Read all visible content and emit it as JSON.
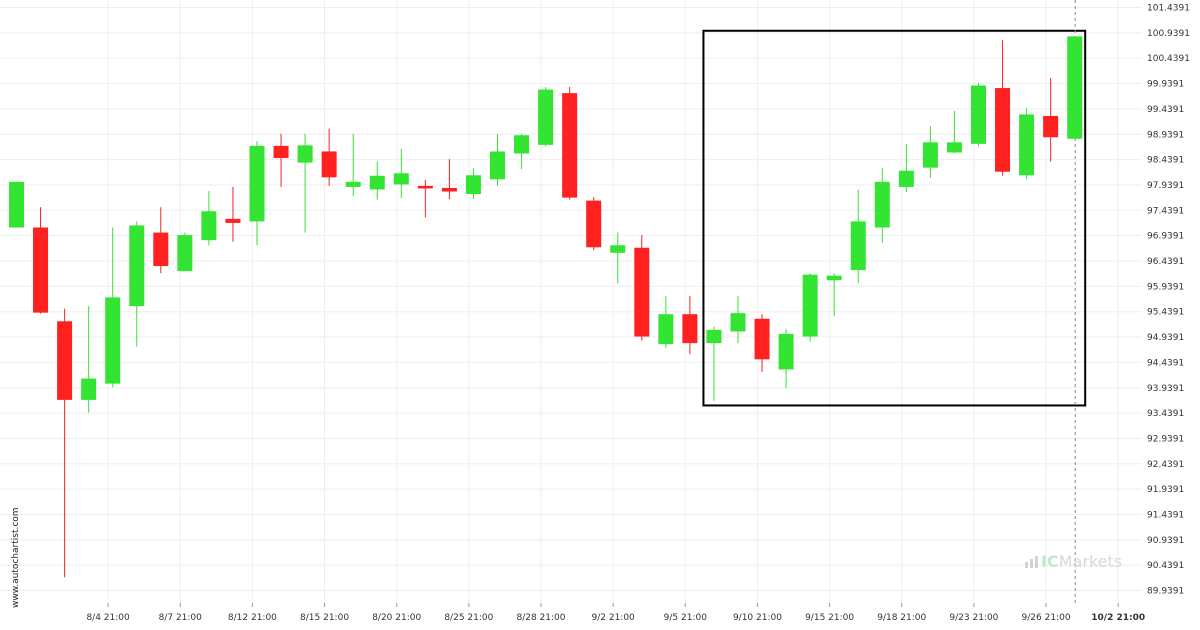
{
  "chart_data": {
    "type": "candlestick",
    "title": "",
    "xlabel": "",
    "ylabel": "",
    "ylim": [
      89.6891,
      101.4391
    ],
    "y_ticks": [
      101.4391,
      100.9391,
      100.4391,
      99.9391,
      99.4391,
      98.9391,
      98.4391,
      97.9391,
      97.4391,
      96.9391,
      96.4391,
      95.9391,
      95.4391,
      94.9391,
      94.4391,
      93.9391,
      93.4391,
      92.9391,
      92.4391,
      91.9391,
      91.4391,
      90.9391,
      90.4391,
      89.9391
    ],
    "x_tick_labels": [
      {
        "label": "8/4 21:00",
        "index": 2
      },
      {
        "label": "8/7 21:00",
        "index": 5
      },
      {
        "label": "8/12 21:00",
        "index": 8
      },
      {
        "label": "8/15 21:00",
        "index": 11
      },
      {
        "label": "8/20 21:00",
        "index": 14
      },
      {
        "label": "8/25 21:00",
        "index": 17
      },
      {
        "label": "8/28 21:00",
        "index": 20
      },
      {
        "label": "9/2 21:00",
        "index": 23
      },
      {
        "label": "9/5 21:00",
        "index": 26
      },
      {
        "label": "9/10 21:00",
        "index": 29
      },
      {
        "label": "9/15 21:00",
        "index": 32
      },
      {
        "label": "9/18 21:00",
        "index": 35
      },
      {
        "label": "9/23 21:00",
        "index": 38
      },
      {
        "label": "9/26 21:00",
        "index": 41
      },
      {
        "label": "10/2 21:00",
        "index": 44,
        "bold": true
      }
    ],
    "candles": [
      {
        "o": 97.1,
        "h": 98.0,
        "l": 97.1,
        "c": 98.0
      },
      {
        "o": 97.1,
        "h": 97.5,
        "l": 95.4,
        "c": 95.42
      },
      {
        "o": 95.25,
        "h": 95.5,
        "l": 90.2,
        "c": 93.7
      },
      {
        "o": 93.7,
        "h": 95.55,
        "l": 93.45,
        "c": 94.12
      },
      {
        "o": 94.02,
        "h": 97.1,
        "l": 93.95,
        "c": 95.72
      },
      {
        "o": 95.55,
        "h": 97.22,
        "l": 94.75,
        "c": 97.14
      },
      {
        "o": 97.0,
        "h": 97.5,
        "l": 96.2,
        "c": 96.34
      },
      {
        "o": 96.24,
        "h": 97.0,
        "l": 96.24,
        "c": 96.95
      },
      {
        "o": 96.85,
        "h": 97.82,
        "l": 96.75,
        "c": 97.42
      },
      {
        "o": 97.27,
        "h": 97.9,
        "l": 96.82,
        "c": 97.19
      },
      {
        "o": 97.22,
        "h": 98.8,
        "l": 96.75,
        "c": 98.71
      },
      {
        "o": 98.71,
        "h": 98.95,
        "l": 97.9,
        "c": 98.47
      },
      {
        "o": 98.38,
        "h": 98.95,
        "l": 97.0,
        "c": 98.72
      },
      {
        "o": 98.6,
        "h": 99.05,
        "l": 97.92,
        "c": 98.09
      },
      {
        "o": 97.9,
        "h": 98.95,
        "l": 97.72,
        "c": 98.0
      },
      {
        "o": 97.85,
        "h": 98.4,
        "l": 97.65,
        "c": 98.12
      },
      {
        "o": 97.95,
        "h": 98.65,
        "l": 97.68,
        "c": 98.17
      },
      {
        "o": 97.92,
        "h": 98.04,
        "l": 97.3,
        "c": 97.87
      },
      {
        "o": 97.88,
        "h": 98.45,
        "l": 97.66,
        "c": 97.81
      },
      {
        "o": 97.76,
        "h": 98.27,
        "l": 97.66,
        "c": 98.13
      },
      {
        "o": 98.05,
        "h": 98.95,
        "l": 97.92,
        "c": 98.6
      },
      {
        "o": 98.56,
        "h": 98.95,
        "l": 98.25,
        "c": 98.92
      },
      {
        "o": 98.73,
        "h": 99.87,
        "l": 98.7,
        "c": 99.82
      },
      {
        "o": 99.75,
        "h": 99.87,
        "l": 97.65,
        "c": 97.69
      },
      {
        "o": 97.63,
        "h": 97.7,
        "l": 96.65,
        "c": 96.71
      },
      {
        "o": 96.6,
        "h": 97.0,
        "l": 96.0,
        "c": 96.75
      },
      {
        "o": 96.7,
        "h": 96.95,
        "l": 94.87,
        "c": 94.95
      },
      {
        "o": 94.8,
        "h": 95.75,
        "l": 94.72,
        "c": 95.39
      },
      {
        "o": 95.39,
        "h": 95.75,
        "l": 94.6,
        "c": 94.82
      },
      {
        "o": 94.82,
        "h": 95.15,
        "l": 93.68,
        "c": 95.08
      },
      {
        "o": 95.05,
        "h": 95.75,
        "l": 94.82,
        "c": 95.41
      },
      {
        "o": 95.3,
        "h": 95.39,
        "l": 94.25,
        "c": 94.5
      },
      {
        "o": 94.3,
        "h": 95.1,
        "l": 93.93,
        "c": 95.0
      },
      {
        "o": 94.95,
        "h": 96.2,
        "l": 94.85,
        "c": 96.17
      },
      {
        "o": 96.06,
        "h": 96.2,
        "l": 95.35,
        "c": 96.15
      },
      {
        "o": 96.26,
        "h": 97.85,
        "l": 96.0,
        "c": 97.22
      },
      {
        "o": 97.1,
        "h": 98.28,
        "l": 96.8,
        "c": 98.0
      },
      {
        "o": 97.9,
        "h": 98.75,
        "l": 97.8,
        "c": 98.22
      },
      {
        "o": 98.28,
        "h": 99.1,
        "l": 98.08,
        "c": 98.78
      },
      {
        "o": 98.58,
        "h": 99.4,
        "l": 98.57,
        "c": 98.78
      },
      {
        "o": 98.75,
        "h": 99.95,
        "l": 98.7,
        "c": 99.9
      },
      {
        "o": 99.85,
        "h": 100.8,
        "l": 98.12,
        "c": 98.2
      },
      {
        "o": 98.13,
        "h": 99.45,
        "l": 98.05,
        "c": 99.33
      },
      {
        "o": 99.3,
        "h": 100.05,
        "l": 98.4,
        "c": 98.88
      },
      {
        "o": 98.85,
        "h": 100.87,
        "l": 98.85,
        "c": 100.87
      }
    ],
    "pattern_box": {
      "start_index": 29,
      "end_index": 44,
      "y_top": 100.98,
      "y_bottom": 93.59
    },
    "current_marker_index": 44,
    "colors": {
      "up": "#33e433",
      "down": "#ff2020",
      "box": "#000000",
      "grid": "#eeeeee",
      "marker": "#888888"
    },
    "grid": true,
    "legend": "none"
  },
  "watermarks": {
    "side_text": "www.autochartist.com",
    "brand_ic": "IC",
    "brand_rest": "Markets",
    "brand_icon": "bars-icon"
  }
}
